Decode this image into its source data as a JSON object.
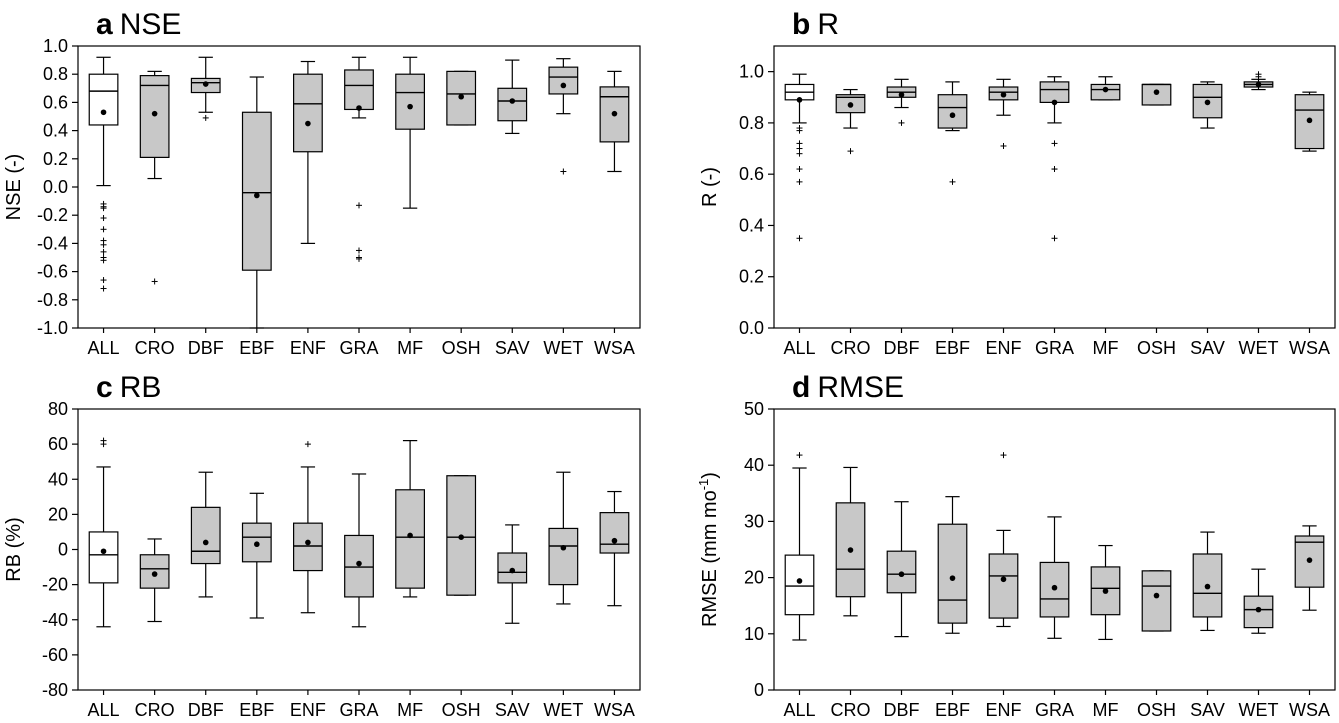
{
  "chart_data": [
    {
      "type": "box",
      "panel": "a",
      "title": "NSE",
      "ylabel": "NSE (-)",
      "ylim": [
        -1.0,
        1.0
      ],
      "yticks": [
        -1.0,
        -0.8,
        -0.6,
        -0.4,
        -0.2,
        0.0,
        0.2,
        0.4,
        0.6,
        0.8,
        1.0
      ],
      "ytick_labels": [
        "-1.0",
        "-0.8",
        "-0.6",
        "-0.4",
        "-0.2",
        "0.0",
        "0.2",
        "0.4",
        "0.6",
        "0.8",
        "1.0"
      ],
      "categories": [
        "ALL",
        "CRO",
        "DBF",
        "EBF",
        "ENF",
        "GRA",
        "MF",
        "OSH",
        "SAV",
        "WET",
        "WSA"
      ],
      "boxes": [
        {
          "min": 0.01,
          "q1": 0.44,
          "median": 0.68,
          "q3": 0.8,
          "max": 0.92,
          "mean": 0.53,
          "fill": "white",
          "outliers": [
            -0.12,
            -0.14,
            -0.15,
            -0.22,
            -0.3,
            -0.38,
            -0.41,
            -0.46,
            -0.5,
            -0.52,
            -0.66,
            -0.72
          ]
        },
        {
          "min": 0.06,
          "q1": 0.21,
          "median": 0.72,
          "q3": 0.79,
          "max": 0.82,
          "mean": 0.52,
          "fill": "gray",
          "outliers": [
            -0.67
          ]
        },
        {
          "min": 0.53,
          "q1": 0.67,
          "median": 0.74,
          "q3": 0.77,
          "max": 0.92,
          "mean": 0.73,
          "fill": "gray",
          "outliers": [
            0.49
          ]
        },
        {
          "min": -1.0,
          "q1": -0.59,
          "median": -0.04,
          "q3": 0.53,
          "max": 0.78,
          "mean": -0.06,
          "fill": "gray",
          "outliers": []
        },
        {
          "min": -0.4,
          "q1": 0.25,
          "median": 0.59,
          "q3": 0.8,
          "max": 0.89,
          "mean": 0.45,
          "fill": "gray",
          "outliers": []
        },
        {
          "min": 0.49,
          "q1": 0.55,
          "median": 0.72,
          "q3": 0.83,
          "max": 0.92,
          "mean": 0.56,
          "fill": "gray",
          "outliers": [
            -0.13,
            -0.45,
            -0.5,
            -0.51
          ]
        },
        {
          "min": -0.15,
          "q1": 0.41,
          "median": 0.67,
          "q3": 0.8,
          "max": 0.92,
          "mean": 0.57,
          "fill": "gray",
          "outliers": []
        },
        {
          "min": 0.44,
          "q1": 0.44,
          "median": 0.66,
          "q3": 0.82,
          "max": 0.82,
          "mean": 0.64,
          "fill": "gray",
          "outliers": []
        },
        {
          "min": 0.38,
          "q1": 0.47,
          "median": 0.61,
          "q3": 0.7,
          "max": 0.9,
          "mean": 0.61,
          "fill": "gray",
          "outliers": []
        },
        {
          "min": 0.52,
          "q1": 0.66,
          "median": 0.78,
          "q3": 0.85,
          "max": 0.91,
          "mean": 0.72,
          "fill": "gray",
          "outliers": [
            0.11
          ]
        },
        {
          "min": 0.11,
          "q1": 0.32,
          "median": 0.64,
          "q3": 0.71,
          "max": 0.82,
          "mean": 0.52,
          "fill": "gray",
          "outliers": []
        }
      ]
    },
    {
      "type": "box",
      "panel": "b",
      "title": "R",
      "ylabel": "R (-)",
      "ylim": [
        0.0,
        1.1
      ],
      "yticks": [
        0.0,
        0.2,
        0.4,
        0.6,
        0.8,
        1.0
      ],
      "ytick_labels": [
        "0.0",
        "0.2",
        "0.4",
        "0.6",
        "0.8",
        "1.0"
      ],
      "categories": [
        "ALL",
        "CRO",
        "DBF",
        "EBF",
        "ENF",
        "GRA",
        "MF",
        "OSH",
        "SAV",
        "WET",
        "WSA"
      ],
      "boxes": [
        {
          "min": 0.8,
          "q1": 0.89,
          "median": 0.92,
          "q3": 0.95,
          "max": 0.99,
          "mean": 0.89,
          "fill": "white",
          "outliers": [
            0.77,
            0.78,
            0.72,
            0.7,
            0.68,
            0.62,
            0.57,
            0.35
          ]
        },
        {
          "min": 0.78,
          "q1": 0.84,
          "median": 0.9,
          "q3": 0.91,
          "max": 0.93,
          "mean": 0.87,
          "fill": "gray",
          "outliers": [
            0.69
          ]
        },
        {
          "min": 0.86,
          "q1": 0.9,
          "median": 0.92,
          "q3": 0.94,
          "max": 0.97,
          "mean": 0.91,
          "fill": "gray",
          "outliers": [
            0.8
          ]
        },
        {
          "min": 0.77,
          "q1": 0.78,
          "median": 0.86,
          "q3": 0.91,
          "max": 0.96,
          "mean": 0.83,
          "fill": "gray",
          "outliers": [
            0.57
          ]
        },
        {
          "min": 0.83,
          "q1": 0.89,
          "median": 0.92,
          "q3": 0.94,
          "max": 0.97,
          "mean": 0.91,
          "fill": "gray",
          "outliers": [
            0.71
          ]
        },
        {
          "min": 0.8,
          "q1": 0.88,
          "median": 0.93,
          "q3": 0.96,
          "max": 0.98,
          "mean": 0.88,
          "fill": "gray",
          "outliers": [
            0.72,
            0.62,
            0.62,
            0.35
          ]
        },
        {
          "min": 0.89,
          "q1": 0.89,
          "median": 0.93,
          "q3": 0.95,
          "max": 0.98,
          "mean": 0.93,
          "fill": "gray",
          "outliers": []
        },
        {
          "min": 0.87,
          "q1": 0.87,
          "median": 0.95,
          "q3": 0.95,
          "max": 0.95,
          "mean": 0.92,
          "fill": "gray",
          "outliers": []
        },
        {
          "min": 0.78,
          "q1": 0.82,
          "median": 0.9,
          "q3": 0.95,
          "max": 0.96,
          "mean": 0.88,
          "fill": "gray",
          "outliers": []
        },
        {
          "min": 0.93,
          "q1": 0.94,
          "median": 0.95,
          "q3": 0.96,
          "max": 0.97,
          "mean": 0.95,
          "fill": "gray",
          "outliers": [
            0.98,
            0.99
          ]
        },
        {
          "min": 0.69,
          "q1": 0.7,
          "median": 0.85,
          "q3": 0.91,
          "max": 0.92,
          "mean": 0.81,
          "fill": "gray",
          "outliers": []
        }
      ]
    },
    {
      "type": "box",
      "panel": "c",
      "title": "RB",
      "ylabel": "RB (%)",
      "ylim": [
        -80,
        80
      ],
      "yticks": [
        -80,
        -60,
        -40,
        -20,
        0,
        20,
        40,
        60,
        80
      ],
      "ytick_labels": [
        "-80",
        "-60",
        "-40",
        "-20",
        "0",
        "20",
        "40",
        "60",
        "80"
      ],
      "categories": [
        "ALL",
        "CRO",
        "DBF",
        "EBF",
        "ENF",
        "GRA",
        "MF",
        "OSH",
        "SAV",
        "WET",
        "WSA"
      ],
      "boxes": [
        {
          "min": -44,
          "q1": -19,
          "median": -3,
          "q3": 10,
          "max": 47,
          "mean": -1,
          "fill": "white",
          "outliers": [
            60,
            62
          ]
        },
        {
          "min": -41,
          "q1": -22,
          "median": -11,
          "q3": -3,
          "max": 6,
          "mean": -14,
          "fill": "gray",
          "outliers": []
        },
        {
          "min": -27,
          "q1": -8,
          "median": -1,
          "q3": 24,
          "max": 44,
          "mean": 4,
          "fill": "gray",
          "outliers": []
        },
        {
          "min": -39,
          "q1": -7,
          "median": 7,
          "q3": 15,
          "max": 32,
          "mean": 3,
          "fill": "gray",
          "outliers": []
        },
        {
          "min": -36,
          "q1": -12,
          "median": 2,
          "q3": 15,
          "max": 47,
          "mean": 4,
          "fill": "gray",
          "outliers": [
            60
          ]
        },
        {
          "min": -44,
          "q1": -27,
          "median": -10,
          "q3": 8,
          "max": 43,
          "mean": -8,
          "fill": "gray",
          "outliers": []
        },
        {
          "min": -27,
          "q1": -22,
          "median": 7,
          "q3": 34,
          "max": 62,
          "mean": 8,
          "fill": "gray",
          "outliers": []
        },
        {
          "min": -26,
          "q1": -26,
          "median": 7,
          "q3": 42,
          "max": 42,
          "mean": 7,
          "fill": "gray",
          "outliers": []
        },
        {
          "min": -42,
          "q1": -19,
          "median": -13,
          "q3": -2,
          "max": 14,
          "mean": -12,
          "fill": "gray",
          "outliers": []
        },
        {
          "min": -31,
          "q1": -20,
          "median": 2,
          "q3": 12,
          "max": 44,
          "mean": 1,
          "fill": "gray",
          "outliers": []
        },
        {
          "min": -32,
          "q1": -2,
          "median": 3,
          "q3": 21,
          "max": 33,
          "mean": 5,
          "fill": "gray",
          "outliers": []
        }
      ]
    },
    {
      "type": "box",
      "panel": "d",
      "title": "RMSE",
      "ylabel": "RMSE (mm mo",
      "ylabel_sup": "-1",
      "ylabel_end": ")",
      "ylim": [
        0,
        50
      ],
      "yticks": [
        0,
        10,
        20,
        30,
        40,
        50
      ],
      "ytick_labels": [
        "0",
        "10",
        "20",
        "30",
        "40",
        "50"
      ],
      "categories": [
        "ALL",
        "CRO",
        "DBF",
        "EBF",
        "ENF",
        "GRA",
        "MF",
        "OSH",
        "SAV",
        "WET",
        "WSA"
      ],
      "boxes": [
        {
          "min": 8.9,
          "q1": 13.4,
          "median": 18.5,
          "q3": 24.0,
          "max": 39.5,
          "mean": 19.4,
          "fill": "white",
          "outliers": [
            41.8
          ]
        },
        {
          "min": 13.2,
          "q1": 16.6,
          "median": 21.5,
          "q3": 33.3,
          "max": 39.6,
          "mean": 24.9,
          "fill": "gray",
          "outliers": []
        },
        {
          "min": 9.5,
          "q1": 17.3,
          "median": 20.6,
          "q3": 24.7,
          "max": 33.5,
          "mean": 20.6,
          "fill": "gray",
          "outliers": []
        },
        {
          "min": 10.1,
          "q1": 11.9,
          "median": 16.0,
          "q3": 29.5,
          "max": 34.4,
          "mean": 19.9,
          "fill": "gray",
          "outliers": []
        },
        {
          "min": 11.3,
          "q1": 12.8,
          "median": 20.3,
          "q3": 24.2,
          "max": 28.4,
          "mean": 19.7,
          "fill": "gray",
          "outliers": [
            41.8
          ]
        },
        {
          "min": 9.2,
          "q1": 13.0,
          "median": 16.2,
          "q3": 22.7,
          "max": 30.8,
          "mean": 18.2,
          "fill": "gray",
          "outliers": []
        },
        {
          "min": 9.0,
          "q1": 13.4,
          "median": 18.1,
          "q3": 21.9,
          "max": 25.7,
          "mean": 17.6,
          "fill": "gray",
          "outliers": []
        },
        {
          "min": 10.5,
          "q1": 10.5,
          "median": 18.5,
          "q3": 21.2,
          "max": 21.2,
          "mean": 16.8,
          "fill": "gray",
          "outliers": []
        },
        {
          "min": 10.6,
          "q1": 13.0,
          "median": 17.2,
          "q3": 24.2,
          "max": 28.1,
          "mean": 18.4,
          "fill": "gray",
          "outliers": []
        },
        {
          "min": 10.1,
          "q1": 11.1,
          "median": 14.3,
          "q3": 16.7,
          "max": 21.5,
          "mean": 14.3,
          "fill": "gray",
          "outliers": []
        },
        {
          "min": 14.2,
          "q1": 18.3,
          "median": 26.3,
          "q3": 27.4,
          "max": 29.2,
          "mean": 23.1,
          "fill": "gray",
          "outliers": []
        }
      ]
    }
  ],
  "colors": {
    "box_fill_gray": "#c8c8c8",
    "box_fill_white": "#ffffff",
    "line": "#000000"
  }
}
